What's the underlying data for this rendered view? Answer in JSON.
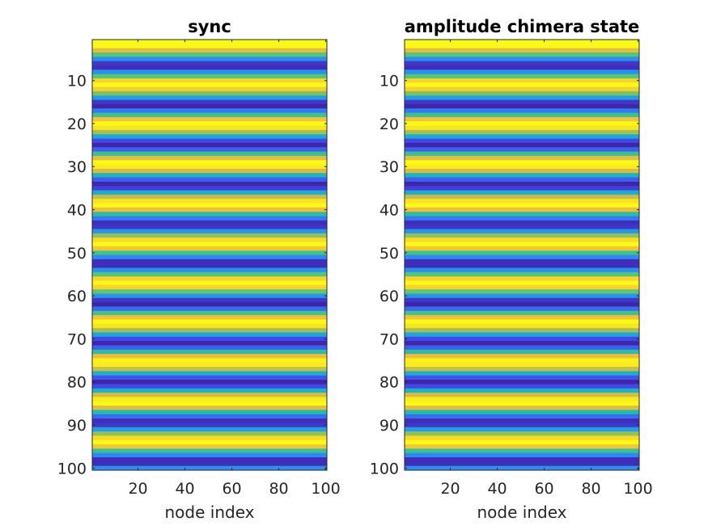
{
  "chart_data": [
    {
      "type": "heatmap",
      "title": "sync",
      "xlabel": "node index",
      "ylabel": "",
      "xlim": [
        0.5,
        100.5
      ],
      "ylim": [
        0.5,
        100.5
      ],
      "y_reversed": true,
      "xticks": [
        20,
        40,
        60,
        80,
        100
      ],
      "yticks": [
        10,
        20,
        30,
        40,
        50,
        60,
        70,
        80,
        90,
        100
      ],
      "colormap": "parula",
      "column_uniform": true,
      "rows": 100,
      "cols": 100,
      "clim": [
        -1,
        1
      ],
      "row_values": [
        1.0,
        1.0,
        0.5,
        0.1,
        -0.5,
        -0.9,
        -0.95,
        -0.5,
        0.1,
        0.75,
        1.0,
        0.7,
        0.2,
        -0.4,
        -0.9,
        -1.0,
        -0.6,
        0.0,
        0.6,
        1.0,
        0.85,
        0.3,
        -0.3,
        -0.8,
        -1.0,
        -0.7,
        0.0,
        0.5,
        1.0,
        0.9,
        0.45,
        -0.2,
        -0.7,
        -1.0,
        -0.85,
        -0.3,
        0.4,
        0.85,
        1.0,
        0.55,
        -0.05,
        -0.6,
        -0.95,
        -0.9,
        -0.45,
        0.25,
        0.8,
        1.0,
        0.65,
        0.05,
        -0.55,
        -0.95,
        -0.95,
        -0.5,
        0.1,
        0.75,
        1.0,
        0.75,
        0.15,
        -0.45,
        -0.9,
        -1.0,
        -0.65,
        0.05,
        0.6,
        1.0,
        0.85,
        0.3,
        -0.35,
        -0.8,
        -1.0,
        -0.7,
        -0.05,
        0.55,
        0.95,
        0.9,
        0.4,
        -0.25,
        -0.75,
        -1.0,
        -0.8,
        -0.2,
        0.45,
        0.9,
        1.0,
        0.5,
        -0.1,
        -0.65,
        -0.95,
        -0.9,
        -0.4,
        0.25,
        0.8,
        1.0,
        0.65,
        0.0,
        -0.55,
        -0.95,
        -0.95,
        -0.5
      ]
    },
    {
      "type": "heatmap",
      "title": "amplitude chimera state",
      "xlabel": "node index",
      "ylabel": "",
      "xlim": [
        0.5,
        100.5
      ],
      "ylim": [
        0.5,
        100.5
      ],
      "y_reversed": true,
      "xticks": [
        20,
        40,
        60,
        80,
        100
      ],
      "yticks": [
        10,
        20,
        30,
        40,
        50,
        60,
        70,
        80,
        90,
        100
      ],
      "colormap": "parula",
      "column_uniform": true,
      "rows": 100,
      "cols": 100,
      "clim": [
        -1,
        1
      ],
      "row_values": [
        1.0,
        1.0,
        0.5,
        0.1,
        -0.5,
        -0.9,
        -0.95,
        -0.5,
        0.1,
        0.75,
        1.0,
        0.7,
        0.2,
        -0.4,
        -0.9,
        -1.0,
        -0.6,
        0.0,
        0.6,
        1.0,
        0.85,
        0.3,
        -0.3,
        -0.8,
        -1.0,
        -0.7,
        0.0,
        0.5,
        1.0,
        0.9,
        0.45,
        -0.2,
        -0.7,
        -1.0,
        -0.85,
        -0.3,
        0.4,
        0.85,
        1.0,
        0.55,
        -0.05,
        -0.6,
        -0.95,
        -0.9,
        -0.45,
        0.25,
        0.8,
        1.0,
        0.65,
        0.05,
        -0.55,
        -0.95,
        -0.95,
        -0.5,
        0.1,
        0.75,
        1.0,
        0.75,
        0.15,
        -0.45,
        -0.9,
        -1.0,
        -0.65,
        0.05,
        0.6,
        1.0,
        0.85,
        0.3,
        -0.35,
        -0.8,
        -1.0,
        -0.7,
        -0.05,
        0.55,
        0.95,
        0.9,
        0.4,
        -0.25,
        -0.75,
        -1.0,
        -0.8,
        -0.2,
        0.45,
        0.9,
        1.0,
        0.5,
        -0.1,
        -0.65,
        -0.95,
        -0.9,
        -0.4,
        0.25,
        0.8,
        1.0,
        0.65,
        0.0,
        -0.55,
        -0.95,
        -0.95,
        -0.5
      ]
    }
  ],
  "colors": {
    "parula_stops": [
      "#3e26a8",
      "#4748f0",
      "#2e87f7",
      "#1aa9dc",
      "#1cbcad",
      "#53c677",
      "#b4be4a",
      "#f6ba3f",
      "#f9d729",
      "#f9fb15"
    ],
    "axis": "#262626",
    "title": "#000000"
  }
}
